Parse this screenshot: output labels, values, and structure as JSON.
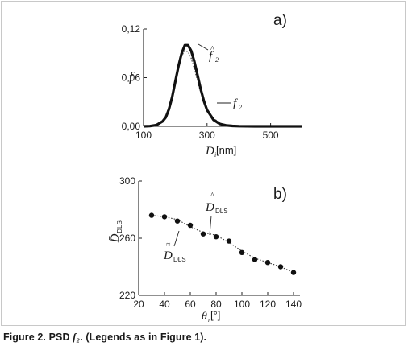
{
  "chart_data": [
    {
      "panel": "a)",
      "type": "line",
      "ylabel": "f",
      "xlabel_main": "D",
      "xlabel_sub": "i",
      "xlabel_unit": "[nm]",
      "xlim": [
        100,
        600
      ],
      "ylim": [
        0,
        0.12
      ],
      "xticks": [
        100,
        300,
        500
      ],
      "xtick_labels": [
        "100",
        "300",
        "500"
      ],
      "yticks": [
        0,
        0.06,
        0.12
      ],
      "ytick_labels": [
        "0,00",
        "0,06",
        "0,12"
      ],
      "series": [
        {
          "name": "f̂2",
          "label_main": "f",
          "label_sub": "2",
          "label_accent": "^",
          "style": "dotted",
          "x": [
            100,
            120,
            140,
            160,
            170,
            180,
            190,
            200,
            210,
            220,
            230,
            240,
            250,
            260,
            270,
            280,
            290,
            300,
            320,
            340,
            360,
            380,
            400,
            450,
            500,
            550,
            600
          ],
          "y": [
            0.0,
            0.0005,
            0.002,
            0.007,
            0.013,
            0.024,
            0.039,
            0.057,
            0.075,
            0.087,
            0.093,
            0.092,
            0.084,
            0.071,
            0.056,
            0.042,
            0.03,
            0.021,
            0.01,
            0.004,
            0.0018,
            0.0008,
            0.0004,
            0.0001,
            0.0,
            0.0,
            0.0
          ]
        },
        {
          "name": "f2",
          "label_main": "f",
          "label_sub": "2",
          "style": "solid",
          "x": [
            100,
            120,
            140,
            160,
            170,
            180,
            190,
            200,
            210,
            220,
            230,
            240,
            250,
            260,
            270,
            280,
            290,
            300,
            320,
            340,
            360,
            380,
            400,
            450,
            500,
            550,
            600
          ],
          "y": [
            0.0,
            0.0003,
            0.0015,
            0.006,
            0.011,
            0.021,
            0.036,
            0.055,
            0.074,
            0.09,
            0.1,
            0.1,
            0.093,
            0.08,
            0.063,
            0.046,
            0.031,
            0.02,
            0.008,
            0.003,
            0.0012,
            0.0005,
            0.0002,
            0.0,
            0.0,
            0.0,
            0.0
          ]
        }
      ]
    },
    {
      "panel": "b)",
      "type": "scatter",
      "ylabel": "D̄",
      "ylabel_sub": "DLS",
      "xlabel_main": "θ",
      "xlabel_sub": "r",
      "xlabel_unit": "[°]",
      "xlim": [
        20,
        145
      ],
      "ylim": [
        220,
        300
      ],
      "xticks": [
        20,
        40,
        60,
        80,
        100,
        120,
        140
      ],
      "xtick_labels": [
        "20",
        "40",
        "60",
        "80",
        "100",
        "120",
        "140"
      ],
      "yticks": [
        220,
        260,
        300
      ],
      "ytick_labels": [
        "220",
        "260",
        "300"
      ],
      "series": [
        {
          "name": "D̃DLS",
          "label_main": "D",
          "label_sub": "DLS",
          "label_accent": "≈",
          "style": "points",
          "x": [
            30,
            40,
            50,
            60,
            70,
            80,
            90,
            100,
            110,
            120,
            130,
            140
          ],
          "y": [
            276,
            275,
            272,
            269,
            263,
            261,
            258,
            250,
            245,
            243,
            240,
            236
          ]
        },
        {
          "name": "D̂DLS",
          "label_main": "D",
          "label_sub": "DLS",
          "label_accent": "^",
          "style": "dotted",
          "x": [
            30,
            40,
            50,
            60,
            70,
            80,
            90,
            100,
            110,
            120,
            130,
            140
          ],
          "y": [
            276,
            275,
            273,
            268,
            264,
            262,
            257,
            251,
            246,
            243,
            240,
            236
          ]
        }
      ]
    }
  ],
  "caption": {
    "prefix": "Figure 2. PSD ",
    "emph": "f₂",
    "suffix": ". (Legends as in Figure 1)."
  }
}
